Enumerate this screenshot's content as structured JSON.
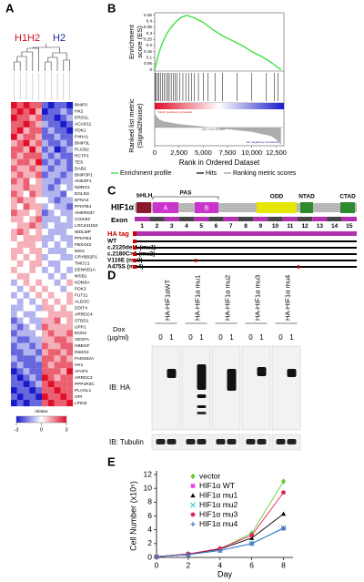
{
  "panels": {
    "A": {
      "label": "A",
      "groups": [
        "H1H2",
        "H2"
      ],
      "genes": [
        "BNIP3",
        "HK2",
        "ERO1L",
        "ACAD11",
        "PDK1",
        "P4HA1",
        "BNIP3L",
        "PLOD2",
        "RCTP1",
        "TES",
        "DAB2",
        "BNIP3P1",
        "ANKZF1",
        "NDRG1",
        "EGLN3",
        "EFNA4",
        "PFKFB4",
        "ANKRD37",
        "COX4I2",
        "LOC441152",
        "WDLMP",
        "PFKFB3",
        "FBXO42",
        "MXI1",
        "CRYBB2P1",
        "TMCC1",
        "DENND1A",
        "WSB1",
        "KDM3A",
        "PDK3",
        "FUT11",
        "ALDOC",
        "DDIT4",
        "ARRDC4",
        "STBD1",
        "UPP1",
        "ENO2",
        "VEGFA",
        "HBEGF",
        "INSIG2",
        "FAM162A",
        "HK1",
        "AFAP1",
        "ARRDC2",
        "PPP1R3C",
        "PLAGL1",
        "GPI",
        "LPIN3"
      ],
      "matrix": [
        [
          3,
          2,
          3,
          2,
          2,
          -2,
          -3,
          -2,
          -2,
          -3
        ],
        [
          2,
          3,
          2,
          3,
          1,
          -3,
          -2,
          -2,
          -1,
          -2
        ],
        [
          3,
          2,
          2,
          1,
          2,
          -2,
          -2,
          -3,
          -2,
          -1
        ],
        [
          2,
          2,
          3,
          2,
          1,
          -1,
          -2,
          -2,
          -3,
          -2
        ],
        [
          2,
          3,
          1,
          2,
          2,
          -2,
          -1,
          -2,
          -2,
          -3
        ],
        [
          3,
          1,
          2,
          2,
          1,
          -2,
          -2,
          -1,
          -2,
          -2
        ],
        [
          1,
          2,
          3,
          1,
          2,
          -1,
          -2,
          -2,
          -1,
          -2
        ],
        [
          2,
          2,
          1,
          3,
          1,
          -2,
          -1,
          -3,
          -2,
          -1
        ],
        [
          2,
          1,
          2,
          2,
          2,
          -1,
          -2,
          -1,
          -2,
          -2
        ],
        [
          1,
          2,
          2,
          1,
          3,
          -2,
          -1,
          -2,
          -1,
          -2
        ],
        [
          2,
          1,
          1,
          2,
          1,
          -1,
          -2,
          -1,
          -1,
          -2
        ],
        [
          1,
          2,
          1,
          1,
          2,
          -2,
          -1,
          -1,
          -2,
          -1
        ],
        [
          2,
          1,
          2,
          0,
          1,
          -1,
          -1,
          -2,
          -1,
          -1
        ],
        [
          1,
          1,
          2,
          1,
          1,
          -1,
          -2,
          -1,
          0,
          -1
        ],
        [
          2,
          1,
          0,
          2,
          1,
          -1,
          -1,
          -1,
          -2,
          0
        ],
        [
          1,
          2,
          1,
          1,
          0,
          0,
          -1,
          -2,
          -1,
          -1
        ],
        [
          1,
          0,
          2,
          1,
          1,
          -1,
          0,
          -1,
          -1,
          -2
        ],
        [
          2,
          1,
          1,
          0,
          1,
          -2,
          -1,
          0,
          -1,
          -1
        ],
        [
          1,
          1,
          0,
          1,
          2,
          -1,
          -1,
          -1,
          0,
          -1
        ],
        [
          0,
          1,
          1,
          2,
          1,
          -1,
          0,
          -1,
          -1,
          -1
        ],
        [
          1,
          2,
          1,
          0,
          1,
          0,
          -1,
          -1,
          -1,
          0
        ],
        [
          1,
          0,
          1,
          1,
          1,
          -1,
          -1,
          0,
          -1,
          -1
        ],
        [
          0,
          1,
          1,
          1,
          0,
          -1,
          0,
          -1,
          0,
          -1
        ],
        [
          1,
          1,
          0,
          1,
          1,
          0,
          -1,
          -1,
          -1,
          0
        ],
        [
          1,
          0,
          1,
          0,
          1,
          -1,
          0,
          0,
          -1,
          -1
        ],
        [
          0,
          1,
          0,
          1,
          1,
          0,
          -1,
          -1,
          0,
          0
        ],
        [
          1,
          0,
          0,
          1,
          0,
          -1,
          0,
          -1,
          0,
          -1
        ],
        [
          0,
          1,
          1,
          0,
          0,
          0,
          -1,
          0,
          -1,
          0
        ],
        [
          -1,
          0,
          1,
          0,
          1,
          0,
          0,
          -1,
          0,
          1
        ],
        [
          0,
          -1,
          0,
          1,
          0,
          1,
          0,
          0,
          -1,
          0
        ],
        [
          -1,
          0,
          -1,
          0,
          1,
          0,
          1,
          0,
          0,
          1
        ],
        [
          0,
          -1,
          0,
          -1,
          0,
          1,
          0,
          1,
          0,
          1
        ],
        [
          -1,
          -1,
          0,
          0,
          -1,
          1,
          1,
          0,
          1,
          0
        ],
        [
          -1,
          0,
          -1,
          -1,
          0,
          0,
          1,
          1,
          1,
          1
        ],
        [
          -2,
          -1,
          0,
          -1,
          -1,
          1,
          1,
          2,
          0,
          1
        ],
        [
          -1,
          -2,
          -1,
          0,
          -1,
          2,
          1,
          1,
          1,
          1
        ],
        [
          -2,
          -1,
          -1,
          -1,
          0,
          1,
          2,
          1,
          1,
          2
        ],
        [
          -1,
          -2,
          -2,
          -1,
          -1,
          1,
          1,
          2,
          2,
          1
        ],
        [
          -2,
          -1,
          -1,
          -2,
          -1,
          2,
          1,
          1,
          2,
          2
        ],
        [
          -2,
          -2,
          -1,
          -1,
          -2,
          1,
          2,
          2,
          1,
          2
        ],
        [
          -1,
          -2,
          -2,
          -2,
          -1,
          2,
          2,
          1,
          2,
          1
        ],
        [
          -2,
          -1,
          -2,
          -2,
          -2,
          2,
          1,
          2,
          2,
          2
        ],
        [
          -3,
          -2,
          -1,
          -2,
          -2,
          2,
          2,
          2,
          1,
          3
        ],
        [
          -2,
          -3,
          -2,
          -1,
          -2,
          3,
          2,
          1,
          2,
          2
        ],
        [
          -2,
          -2,
          -3,
          -2,
          -1,
          2,
          3,
          2,
          2,
          2
        ],
        [
          -3,
          -2,
          -2,
          -3,
          -2,
          2,
          2,
          3,
          2,
          2
        ],
        [
          -2,
          -3,
          -2,
          -2,
          -3,
          3,
          2,
          2,
          3,
          2
        ],
        [
          -3,
          -2,
          -3,
          -2,
          -2,
          2,
          3,
          2,
          2,
          3
        ]
      ],
      "scale": {
        "lim": [
          -3,
          3
        ],
        "ticks": [
          -3,
          0,
          3
        ],
        "label": "relative"
      }
    },
    "B": {
      "label": "B",
      "es_y_label": [
        "Enrichment",
        "score (ES)"
      ],
      "metric_y_label": [
        "Ranked list metric",
        "(Signal2Noise)"
      ],
      "x_label": "Rank in Ordered Dataset",
      "xlim": [
        0,
        13300
      ],
      "xticks": [
        0,
        {
          "value": 2500,
          "label": "2,500"
        },
        {
          "value": 5000,
          "label": "5,000"
        },
        {
          "value": 7500,
          "label": "7,500"
        },
        {
          "value": 10000,
          "label": "10,000"
        },
        {
          "value": 12500,
          "label": "12,500"
        }
      ],
      "es_ylim": [
        -0.01,
        0.47
      ],
      "es_yticks": [
        0.45,
        0.4,
        0.35,
        0.3,
        0.25,
        0.2,
        0.15,
        0.1,
        0.05,
        0
      ],
      "es_x": [
        0,
        300,
        600,
        900,
        1200,
        1500,
        1800,
        2100,
        2400,
        2700,
        3000,
        3300,
        3600,
        4000,
        4500,
        5000,
        5500,
        6000,
        7000,
        8000,
        9000,
        10000,
        11000,
        12000,
        12500,
        13000
      ],
      "es_values": [
        0,
        0.1,
        0.18,
        0.24,
        0.29,
        0.33,
        0.36,
        0.39,
        0.41,
        0.43,
        0.44,
        0.45,
        0.44,
        0.43,
        0.41,
        0.39,
        0.36,
        0.33,
        0.28,
        0.24,
        0.2,
        0.15,
        0.11,
        0.06,
        0.03,
        0
      ],
      "hits": [
        50,
        150,
        300,
        450,
        600,
        800,
        1000,
        1200,
        1350,
        1500,
        1700,
        1900,
        2100,
        2300,
        2600,
        2900,
        3200,
        3500,
        3800,
        4100,
        4500,
        5000,
        5500,
        6200,
        7000,
        8500,
        10000,
        11500,
        12300,
        12700
      ],
      "metric_ylim": [
        -1,
        1
      ],
      "metric_x": [
        0,
        500,
        1000,
        2500,
        5000,
        5838,
        7500,
        10000,
        12000,
        12500,
        13000
      ],
      "metric_values": [
        0.8,
        0.45,
        0.35,
        0.2,
        0.05,
        0,
        -0.1,
        -0.25,
        -0.5,
        -0.7,
        -1
      ],
      "pos_note": "'H1H2' (positively correlated)",
      "zero_note": "Zero cross at 5838",
      "neg_note": "'H2' (negatively correlated)",
      "legend": [
        "Enrichment profile",
        "Hits",
        "Ranking metric scores"
      ],
      "colors": {
        "profile": "#33dd33",
        "hits": "#000000",
        "metric": "#999999"
      }
    },
    "C": {
      "label": "C",
      "protein": "HIF1α",
      "domains": {
        "bhlh": "bHLH",
        "pas": "PAS",
        "a": "A",
        "b": "B",
        "odd": "ODD",
        "ntad": "NTAD",
        "ctad": "CTAD"
      },
      "exon_label": "Exon",
      "exons": [
        "1",
        "2",
        "3",
        "4",
        "5",
        "6",
        "7",
        "8",
        "9",
        "10",
        "11",
        "12",
        "13",
        "14",
        "15"
      ],
      "ha": "HA tag",
      "constructs": [
        "WT",
        "c.2120delA (mu1)",
        "c.2180C>A (mu2)",
        "V116E (mu3)",
        "A475S (mu4)"
      ]
    },
    "D": {
      "label": "D",
      "lanes": [
        "HA-HIF1αWT",
        "HA-HIF1α mu1",
        "HA-HIF1α mu2",
        "HA-HIF1α mu3",
        "HA-HIF1α mu4"
      ],
      "dox": [
        "Dox",
        "(μg/ml)"
      ],
      "dox_levels": [
        "0",
        "1"
      ],
      "blots": [
        "IB: HA",
        "IB: Tubulin"
      ]
    },
    "E": {
      "label": "E"
    }
  },
  "chart_data": {
    "type": "line",
    "x_label": "Day",
    "y_label": "Cell Number (x10⁵)",
    "x": [
      0,
      2,
      4,
      6,
      8
    ],
    "xlim": [
      0,
      8.6
    ],
    "xticks": [
      0,
      2,
      4,
      6,
      8
    ],
    "ylim": [
      0,
      12
    ],
    "yticks": [
      0,
      2,
      4,
      6,
      8,
      10,
      12
    ],
    "series": [
      {
        "name": "vector",
        "color": "#66cc33",
        "marker": "diamond",
        "values": [
          0.1,
          0.5,
          1.2,
          3.5,
          11
        ]
      },
      {
        "name": "HIF1α WT",
        "color": "#ee44ee",
        "marker": "square",
        "values": [
          0.1,
          0.4,
          1.0,
          2.0,
          4.2
        ]
      },
      {
        "name": "HIF1α mu1",
        "color": "#000000",
        "marker": "triangle",
        "values": [
          0.1,
          0.5,
          1.2,
          2.8,
          6.3
        ]
      },
      {
        "name": "HIF1α mu2",
        "color": "#33cccc",
        "marker": "x",
        "values": [
          0.1,
          0.4,
          1.0,
          2.0,
          4.3
        ]
      },
      {
        "name": "HIF1α mu3",
        "color": "#dd2255",
        "marker": "circle",
        "values": [
          0.1,
          0.5,
          1.3,
          3.2,
          9.4
        ]
      },
      {
        "name": "HIF1α mu4",
        "color": "#4477cc",
        "marker": "plus",
        "values": [
          0.1,
          0.4,
          1.0,
          2.0,
          4.2
        ]
      }
    ]
  }
}
